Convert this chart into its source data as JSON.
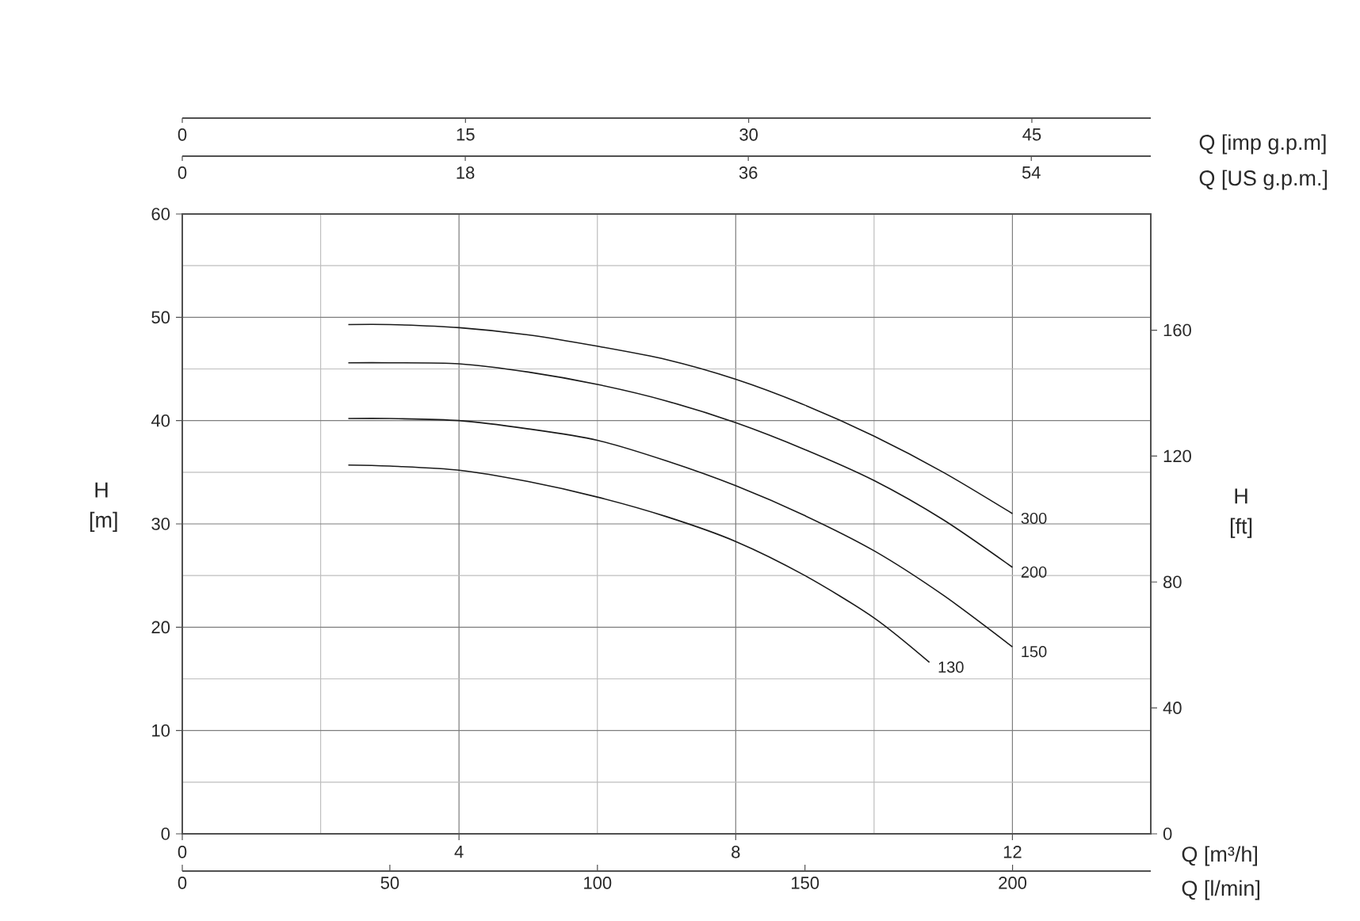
{
  "chart_data": [
    {
      "type": "line",
      "xlabel": "Q [m³/h]",
      "x2label": "Q [imp g.p.m]",
      "ylabel": "H [m]",
      "y2label": "H [ft]",
      "xlim": [
        0,
        14
      ],
      "xticks": [
        0,
        {
          "value": 2,
          "label": null
        },
        4,
        {
          "value": 6,
          "label": null
        },
        8,
        {
          "value": 10,
          "label": null
        },
        12
      ],
      "x2lim": [
        0,
        51.3
      ],
      "x2ticks": [
        0,
        15,
        30,
        45
      ],
      "ylim": [
        0,
        60
      ],
      "yticks": [
        0,
        {
          "value": 5,
          "label": null
        },
        10,
        {
          "value": 15,
          "label": null
        },
        20,
        {
          "value": 25,
          "label": null
        },
        30,
        {
          "value": 35,
          "label": null
        },
        40,
        {
          "value": 45,
          "label": null
        },
        50,
        {
          "value": 55,
          "label": null
        },
        60
      ],
      "y2lim": [
        0,
        196.9
      ],
      "y2ticks": [
        0,
        40,
        80,
        120,
        160
      ],
      "grid": true,
      "series": [
        {
          "name": "300",
          "color": "#1a1a1a",
          "x": [
            2.4,
            3,
            4,
            5,
            6,
            7,
            8,
            9,
            10,
            11,
            12
          ],
          "values": [
            49.3,
            49.3,
            49.0,
            48.3,
            47.2,
            45.9,
            44.0,
            41.5,
            38.5,
            35.0,
            31.0
          ]
        },
        {
          "name": "200",
          "color": "#1a1a1a",
          "x": [
            2.4,
            3,
            4,
            5,
            6,
            7,
            8,
            9,
            10,
            11,
            12
          ],
          "values": [
            45.6,
            45.6,
            45.5,
            44.7,
            43.5,
            41.9,
            39.8,
            37.2,
            34.2,
            30.4,
            25.8
          ]
        },
        {
          "name": "150",
          "color": "#1a1a1a",
          "x": [
            2.4,
            3,
            4,
            5,
            6,
            7,
            8,
            9,
            10,
            11,
            12
          ],
          "values": [
            40.2,
            40.2,
            40.0,
            39.2,
            38.1,
            36.1,
            33.7,
            30.8,
            27.4,
            23.1,
            18.1
          ]
        },
        {
          "name": "130",
          "color": "#1a1a1a",
          "x": [
            2.4,
            3,
            4,
            5,
            6,
            7,
            8,
            9,
            10,
            10.8
          ],
          "values": [
            35.7,
            35.6,
            35.2,
            34.1,
            32.6,
            30.7,
            28.3,
            25.0,
            20.9,
            16.6
          ]
        }
      ]
    },
    {
      "type": "line",
      "xlabel": "Q [l/min]",
      "x2label": "Q [US g.p.m.]",
      "xlim": [
        0,
        233.3
      ],
      "xticks": [
        0,
        50,
        100,
        150,
        200
      ],
      "x2lim": [
        0,
        61.6
      ],
      "x2ticks": [
        0,
        18,
        36,
        54
      ],
      "ylim": [
        0,
        60
      ],
      "tick_labels": "x"
    }
  ]
}
